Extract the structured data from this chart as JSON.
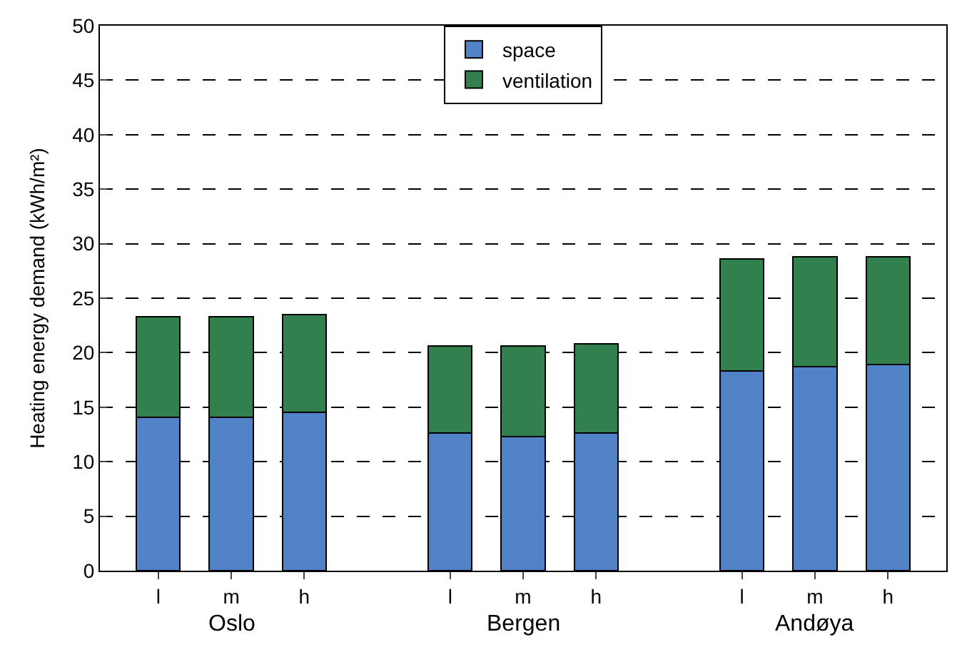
{
  "chart_data": {
    "type": "bar",
    "stacked": true,
    "ylabel": "Heating energy demand (kWh/m²)",
    "categories": [
      "l",
      "m",
      "h",
      null,
      "l",
      "m",
      "h",
      null,
      "l",
      "m",
      "h"
    ],
    "series": [
      {
        "name": "space",
        "color": "#5181c6",
        "values": [
          14.1,
          14.1,
          14.5,
          null,
          12.6,
          12.3,
          12.6,
          null,
          18.3,
          18.7,
          18.9
        ]
      },
      {
        "name": "ventilation",
        "color": "#33804f",
        "values": [
          9.2,
          9.2,
          9.0,
          null,
          8.0,
          8.3,
          8.2,
          null,
          10.3,
          10.1,
          9.9
        ]
      }
    ],
    "annotations": [
      "Oslo",
      "Bergen",
      "Andøya"
    ],
    "ylim": [
      0,
      50
    ],
    "yticks": [
      0,
      5,
      10,
      15,
      20,
      25,
      30,
      35,
      40,
      45,
      50
    ],
    "grid": "y",
    "legend": "top"
  }
}
